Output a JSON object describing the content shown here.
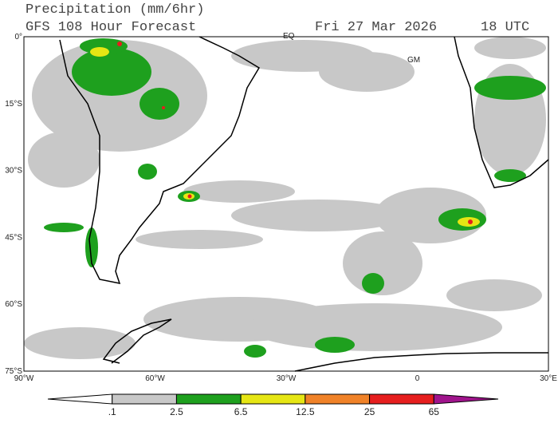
{
  "header": {
    "title": "Precipitation (mm/6hr)",
    "model": "GFS 108 Hour Forecast",
    "date": "Fri 27 Mar 2026",
    "time": "18 UTC"
  },
  "map": {
    "lat_labels": [
      "0°",
      "15°S",
      "30°S",
      "45°S",
      "60°S",
      "75°S"
    ],
    "lon_labels": [
      "90°W",
      "60°W",
      "30°W",
      "0",
      "30°E"
    ],
    "annotations": [
      "EQ",
      "GM"
    ]
  },
  "legend": {
    "labels": [
      ".1",
      "2.5",
      "6.5",
      "12.5",
      "25",
      "65"
    ],
    "colors": [
      "#ffffff",
      "#c8c8c8",
      "#1ea01e",
      "#e6e614",
      "#f08228",
      "#e61e1e",
      "#a0148c"
    ]
  }
}
